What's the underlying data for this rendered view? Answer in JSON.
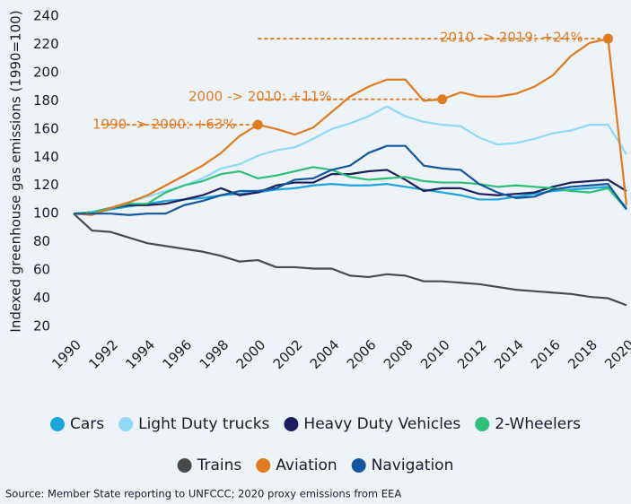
{
  "chart_data": {
    "type": "line",
    "y_label": "Indexed greenhouse gas emissions (1990=100)",
    "source": "Source: Member State reporting to UNFCCC; 2020 proxy emissions from EEA",
    "x": [
      1990,
      1991,
      1992,
      1993,
      1994,
      1995,
      1996,
      1997,
      1998,
      1999,
      2000,
      2001,
      2002,
      2003,
      2004,
      2005,
      2006,
      2007,
      2008,
      2009,
      2010,
      2011,
      2012,
      2013,
      2014,
      2015,
      2016,
      2017,
      2018,
      2019,
      2020
    ],
    "xlim": [
      1990,
      2020
    ],
    "xticks": [
      1990,
      1992,
      1994,
      1996,
      1998,
      2000,
      2002,
      2004,
      2006,
      2008,
      2010,
      2012,
      2014,
      2016,
      2018,
      2020
    ],
    "ylim": [
      20,
      240
    ],
    "yticks": [
      20,
      40,
      60,
      80,
      100,
      120,
      140,
      160,
      180,
      200,
      220,
      240
    ],
    "series": [
      {
        "name": "Cars",
        "color": "#1ea4dd",
        "values": [
          100,
          100,
          103,
          105,
          107,
          109,
          110,
          111,
          113,
          114,
          115,
          117,
          118,
          120,
          121,
          120,
          120,
          121,
          119,
          117,
          115,
          113,
          110,
          110,
          112,
          114,
          116,
          117,
          118,
          119,
          104
        ]
      },
      {
        "name": "Light Duty trucks",
        "color": "#8fd8f8",
        "values": [
          100,
          100,
          104,
          108,
          112,
          116,
          120,
          125,
          132,
          135,
          141,
          145,
          147,
          153,
          160,
          164,
          169,
          176,
          169,
          165,
          163,
          162,
          154,
          149,
          150,
          153,
          157,
          159,
          163,
          163,
          142
        ]
      },
      {
        "name": "Heavy Duty Vehicles",
        "color": "#1d1f5c",
        "values": [
          100,
          101,
          104,
          106,
          106,
          107,
          110,
          113,
          118,
          113,
          115,
          120,
          122,
          122,
          128,
          128,
          130,
          131,
          124,
          116,
          118,
          118,
          114,
          113,
          114,
          115,
          119,
          122,
          123,
          124,
          116
        ]
      },
      {
        "name": "2-Wheelers",
        "color": "#2fbf7a",
        "values": [
          100,
          101,
          104,
          107,
          107,
          115,
          120,
          123,
          128,
          130,
          125,
          127,
          130,
          133,
          131,
          126,
          124,
          125,
          126,
          123,
          122,
          122,
          121,
          119,
          120,
          119,
          118,
          116,
          115,
          118,
          103
        ]
      },
      {
        "name": "Trains",
        "color": "#4a4a4a",
        "values": [
          100,
          88,
          87,
          83,
          79,
          77,
          75,
          73,
          70,
          66,
          67,
          62,
          62,
          61,
          61,
          56,
          55,
          57,
          56,
          52,
          52,
          51,
          50,
          48,
          46,
          45,
          44,
          43,
          41,
          40,
          35
        ]
      },
      {
        "name": "Aviation",
        "color": "#e07b22",
        "values": [
          100,
          99,
          104,
          108,
          113,
          120,
          127,
          134,
          143,
          155,
          163,
          160,
          156,
          161,
          172,
          183,
          190,
          195,
          195,
          180,
          181,
          186,
          183,
          183,
          185,
          190,
          198,
          212,
          221,
          224,
          106
        ]
      },
      {
        "name": "Navigation",
        "color": "#1457a0",
        "values": [
          100,
          100,
          100,
          99,
          100,
          100,
          106,
          109,
          113,
          116,
          116,
          118,
          124,
          125,
          131,
          134,
          143,
          148,
          148,
          134,
          132,
          131,
          121,
          115,
          111,
          112,
          117,
          119,
          120,
          121,
          103
        ]
      }
    ],
    "annotations": [
      {
        "text": "1990 -> 2000: +63%",
        "x": [
          1990,
          2000
        ]
      },
      {
        "text": "2000 -> 2010: +11%",
        "x": [
          2000,
          2010
        ]
      },
      {
        "text": "2010 -> 2019: +24%",
        "x": [
          2010,
          2019
        ]
      }
    ]
  }
}
